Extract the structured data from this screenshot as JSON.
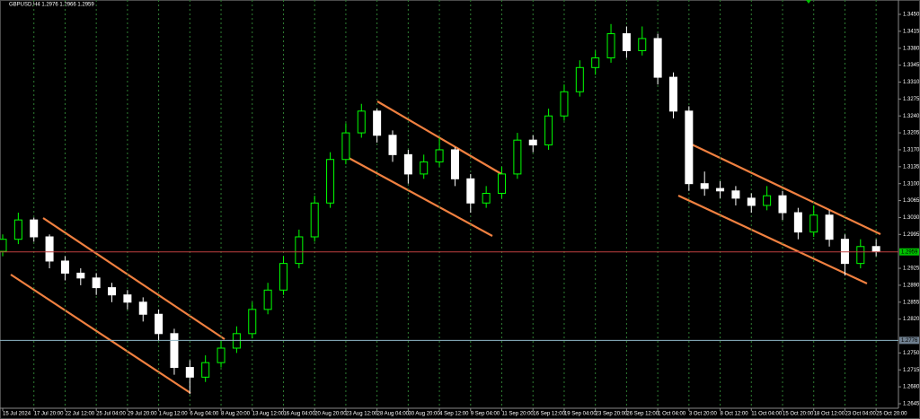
{
  "chart_data": {
    "type": "candlestick",
    "title": "GBPUSD,H4  1.2976 1.2966 1.2959",
    "categories": [
      "15 Jul 2024",
      null,
      "17 Jul 20:00",
      null,
      "22 Jul 12:00",
      null,
      "25 Jul 04:00",
      null,
      "29 Jul 20:00",
      null,
      "1 Aug 12:00",
      null,
      "6 Aug 04:00",
      null,
      "8 Aug 20:00",
      null,
      "13 Aug 12:00",
      null,
      "16 Aug 04:00",
      null,
      "20 Aug 20:00",
      null,
      "23 Aug 12:00",
      null,
      "28 Aug 04:00",
      null,
      "30 Aug 20:00",
      null,
      "4 Sep 12:00",
      null,
      "9 Sep 04:00",
      null,
      "11 Sep 20:00",
      null,
      "16 Sep 12:00",
      null,
      "19 Sep 04:00",
      null,
      "23 Sep 20:00",
      null,
      "26 Sep 12:00",
      null,
      "1 Oct 04:00",
      null,
      "3 Oct 20:00",
      null,
      "8 Oct 12:00",
      null,
      "11 Oct 04:00",
      null,
      "15 Oct 20:00",
      null,
      "18 Oct 12:00",
      null,
      "23 Oct 04:00",
      null,
      "25 Oct 20:00"
    ],
    "ohlc": [
      [
        1.296,
        1.2995,
        1.295,
        1.2985
      ],
      [
        1.2985,
        1.304,
        1.2975,
        1.3025
      ],
      [
        1.3025,
        1.303,
        1.298,
        1.299
      ],
      [
        1.299,
        1.2995,
        1.2925,
        1.294
      ],
      [
        1.294,
        1.295,
        1.29,
        1.2915
      ],
      [
        1.2915,
        1.2925,
        1.289,
        1.2905
      ],
      [
        1.2905,
        1.2915,
        1.287,
        1.2885
      ],
      [
        1.2885,
        1.2895,
        1.2855,
        1.287
      ],
      [
        1.287,
        1.288,
        1.284,
        1.2855
      ],
      [
        1.2855,
        1.2865,
        1.2815,
        1.283
      ],
      [
        1.283,
        1.284,
        1.2775,
        1.279
      ],
      [
        1.279,
        1.28,
        1.2705,
        1.272
      ],
      [
        1.272,
        1.2735,
        1.2665,
        1.27
      ],
      [
        1.27,
        1.2745,
        1.269,
        1.273
      ],
      [
        1.273,
        1.2775,
        1.272,
        1.276
      ],
      [
        1.276,
        1.2805,
        1.275,
        1.279
      ],
      [
        1.279,
        1.2855,
        1.278,
        1.284
      ],
      [
        1.284,
        1.2895,
        1.283,
        1.288
      ],
      [
        1.288,
        1.295,
        1.287,
        1.2935
      ],
      [
        1.2935,
        1.3005,
        1.2925,
        1.299
      ],
      [
        1.299,
        1.3075,
        1.298,
        1.306
      ],
      [
        1.306,
        1.3165,
        1.305,
        1.315
      ],
      [
        1.315,
        1.3225,
        1.314,
        1.3205
      ],
      [
        1.3205,
        1.3265,
        1.3195,
        1.325
      ],
      [
        1.325,
        1.3255,
        1.3185,
        1.32
      ],
      [
        1.32,
        1.321,
        1.3145,
        1.316
      ],
      [
        1.316,
        1.317,
        1.31,
        1.312
      ],
      [
        1.312,
        1.316,
        1.311,
        1.3145
      ],
      [
        1.3145,
        1.3195,
        1.3135,
        1.317
      ],
      [
        1.317,
        1.3175,
        1.3095,
        1.311
      ],
      [
        1.311,
        1.312,
        1.304,
        1.306
      ],
      [
        1.306,
        1.3095,
        1.305,
        1.308
      ],
      [
        1.308,
        1.3135,
        1.307,
        1.312
      ],
      [
        1.312,
        1.3205,
        1.311,
        1.319
      ],
      [
        1.319,
        1.32,
        1.3165,
        1.318
      ],
      [
        1.318,
        1.3255,
        1.317,
        1.324
      ],
      [
        1.324,
        1.3305,
        1.323,
        1.329
      ],
      [
        1.329,
        1.3355,
        1.328,
        1.334
      ],
      [
        1.334,
        1.3375,
        1.3325,
        1.336
      ],
      [
        1.336,
        1.343,
        1.335,
        1.341
      ],
      [
        1.341,
        1.3425,
        1.336,
        1.3375
      ],
      [
        1.3375,
        1.3425,
        1.3365,
        1.34
      ],
      [
        1.34,
        1.341,
        1.3305,
        1.332
      ],
      [
        1.332,
        1.333,
        1.3235,
        1.325
      ],
      [
        1.325,
        1.326,
        1.3085,
        1.31
      ],
      [
        1.31,
        1.3125,
        1.3075,
        1.309
      ],
      [
        1.309,
        1.3105,
        1.307,
        1.3085
      ],
      [
        1.3085,
        1.3095,
        1.3055,
        1.307
      ],
      [
        1.307,
        1.308,
        1.304,
        1.3055
      ],
      [
        1.3055,
        1.3095,
        1.3045,
        1.3075
      ],
      [
        1.3075,
        1.3085,
        1.3025,
        1.304
      ],
      [
        1.304,
        1.305,
        1.2985,
        1.3
      ],
      [
        1.3,
        1.3055,
        1.299,
        1.3035
      ],
      [
        1.3035,
        1.3045,
        1.297,
        1.2985
      ],
      [
        1.2985,
        1.2995,
        1.291,
        1.2935
      ],
      [
        1.2935,
        1.2985,
        1.2925,
        1.297
      ],
      [
        1.297,
        1.2985,
        1.295,
        1.296
      ]
    ],
    "bull_color": "#00ff00",
    "bear_color": "#ffffff",
    "ylim": [
      1.2645,
      1.345
    ],
    "yticks": [
      {
        "value": 1.345,
        "label": "1.3450"
      },
      {
        "value": 1.3415,
        "label": "1.3415"
      },
      {
        "value": 1.338,
        "label": "1.3380"
      },
      {
        "value": 1.3345,
        "label": "1.3345"
      },
      {
        "value": 1.331,
        "label": "1.3310"
      },
      {
        "value": 1.3275,
        "label": "1.3275"
      },
      {
        "value": 1.324,
        "label": "1.3240"
      },
      {
        "value": 1.3205,
        "label": "1.3205"
      },
      {
        "value": 1.317,
        "label": "1.3170"
      },
      {
        "value": 1.3135,
        "label": "1.3135"
      },
      {
        "value": 1.31,
        "label": "1.3100"
      },
      {
        "value": 1.3065,
        "label": "1.3065"
      },
      {
        "value": 1.303,
        "label": "1.3030"
      },
      {
        "value": 1.2995,
        "label": "1.2995"
      },
      {
        "value": 1.2925,
        "label": "1.2925"
      },
      {
        "value": 1.289,
        "label": "1.2890"
      },
      {
        "value": 1.2855,
        "label": "1.2855"
      },
      {
        "value": 1.282,
        "label": "1.2820"
      },
      {
        "value": 1.275,
        "label": "1.2750"
      },
      {
        "value": 1.2715,
        "label": "1.2715"
      },
      {
        "value": 1.268,
        "label": "1.2680"
      },
      {
        "value": 1.2645,
        "label": "1.2645"
      }
    ],
    "price_lines": [
      {
        "value": 1.2959,
        "label": "1.2959",
        "color": "#00c000",
        "line_color": "#c04040"
      },
      {
        "value": 1.2776,
        "label": "1.2776",
        "color": "#708090",
        "line_color": "#8fb8c8"
      }
    ]
  }
}
